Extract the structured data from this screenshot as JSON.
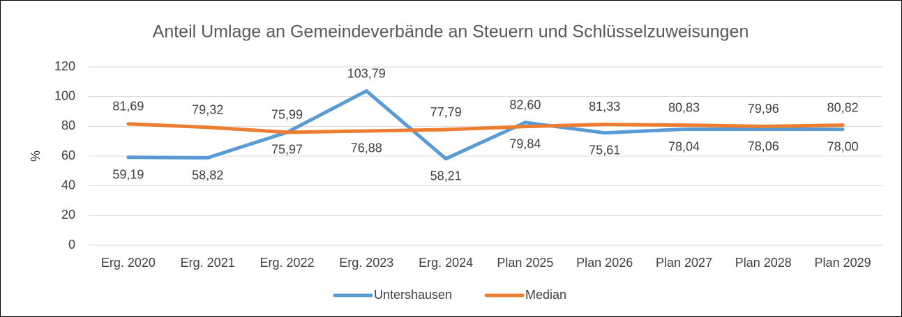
{
  "chart_data": {
    "type": "line",
    "title": "Anteil Umlage an Gemeindeverbände an Steuern und Schlüsselzuweisungen",
    "y_label": "%",
    "categories": [
      "Erg. 2020",
      "Erg. 2021",
      "Erg. 2022",
      "Erg. 2023",
      "Erg. 2024",
      "Plan 2025",
      "Plan 2026",
      "Plan 2027",
      "Plan 2028",
      "Plan 2029"
    ],
    "series": [
      {
        "name": "Untershausen",
        "color": "#5b9bd5",
        "values": [
          59.19,
          58.82,
          75.97,
          103.79,
          58.21,
          82.6,
          75.61,
          78.04,
          78.06,
          78.0
        ],
        "value_labels": [
          "59,19",
          "58,82",
          "75,97",
          "103,79",
          "58,21",
          "82,60",
          "75,61",
          "78,04",
          "78,06",
          "78,00"
        ]
      },
      {
        "name": "Median",
        "color": "#ed7d31",
        "values": [
          81.69,
          79.32,
          75.99,
          76.88,
          77.79,
          79.84,
          81.33,
          80.83,
          79.96,
          80.82
        ],
        "value_labels": [
          "81,69",
          "79,32",
          "75,99",
          "76,88",
          "77,79",
          "79,84",
          "81,33",
          "80,83",
          "79,96",
          "80,82"
        ]
      }
    ],
    "ylim": [
      0,
      120
    ],
    "yticks": [
      0,
      20,
      40,
      60,
      80,
      100,
      120
    ],
    "grid": true,
    "legend": "bottom"
  }
}
